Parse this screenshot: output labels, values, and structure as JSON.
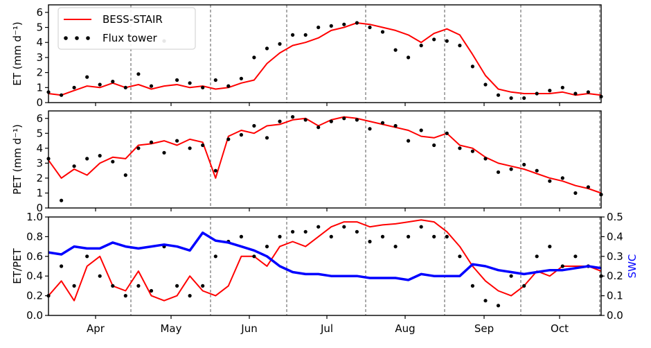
{
  "chart_data": [
    {
      "type": "line",
      "ylabel": "ET (mm d⁻¹)",
      "ylim": [
        0,
        6.5
      ],
      "yticks": [
        0,
        1,
        2,
        3,
        4,
        5,
        6
      ],
      "legend": {
        "placement": "top-left",
        "entries": [
          "BESS-STAIR",
          "Flux tower"
        ]
      },
      "series": [
        {
          "name": "BESS-STAIR",
          "style": "line",
          "color": "#ff0000",
          "x": [
            0,
            5,
            10,
            15,
            20,
            25,
            30,
            35,
            40,
            45,
            50,
            55,
            60,
            65,
            70,
            75,
            80,
            85,
            90,
            95,
            100,
            105,
            110,
            115,
            120,
            125,
            130,
            135,
            140,
            145,
            150,
            155,
            160,
            165,
            170,
            175,
            180,
            185,
            190,
            195,
            200,
            205,
            210,
            215
          ],
          "y": [
            0.6,
            0.5,
            0.8,
            1.1,
            1.0,
            1.3,
            1.0,
            1.2,
            0.9,
            1.1,
            1.2,
            1.0,
            1.1,
            0.9,
            1.0,
            1.3,
            1.5,
            2.6,
            3.3,
            3.8,
            4.0,
            4.3,
            4.8,
            5.0,
            5.3,
            5.2,
            5.0,
            4.8,
            4.5,
            4.0,
            4.6,
            4.9,
            4.5,
            3.2,
            1.8,
            0.9,
            0.7,
            0.6,
            0.6,
            0.6,
            0.7,
            0.5,
            0.6,
            0.5
          ]
        },
        {
          "name": "Flux tower",
          "style": "points",
          "color": "#000000",
          "x": [
            0,
            5,
            10,
            15,
            20,
            25,
            30,
            35,
            40,
            45,
            50,
            55,
            60,
            65,
            70,
            75,
            80,
            85,
            90,
            95,
            100,
            105,
            110,
            115,
            120,
            125,
            130,
            135,
            140,
            145,
            150,
            155,
            160,
            165,
            170,
            175,
            180,
            185,
            190,
            195,
            200,
            205,
            210,
            215
          ],
          "y": [
            0.7,
            0.5,
            1.0,
            1.7,
            1.2,
            1.4,
            1.0,
            1.9,
            1.1,
            4.1,
            1.5,
            1.3,
            1.0,
            1.5,
            1.1,
            1.6,
            3.0,
            3.6,
            3.9,
            4.5,
            4.5,
            5.0,
            5.1,
            5.2,
            5.3,
            5.0,
            4.7,
            3.5,
            3.0,
            3.8,
            4.2,
            4.1,
            3.8,
            2.4,
            1.2,
            0.5,
            0.3,
            0.3,
            0.6,
            0.8,
            1.0,
            0.6,
            0.7,
            0.4
          ]
        }
      ]
    },
    {
      "type": "line",
      "ylabel": "PET (mm d⁻¹)",
      "ylim": [
        0,
        6.5
      ],
      "yticks": [
        0,
        1,
        2,
        3,
        4,
        5,
        6
      ],
      "series": [
        {
          "name": "BESS-STAIR",
          "style": "line",
          "color": "#ff0000",
          "x": [
            0,
            5,
            10,
            15,
            20,
            25,
            30,
            35,
            40,
            45,
            50,
            55,
            60,
            65,
            70,
            75,
            80,
            85,
            90,
            95,
            100,
            105,
            110,
            115,
            120,
            125,
            130,
            135,
            140,
            145,
            150,
            155,
            160,
            165,
            170,
            175,
            180,
            185,
            190,
            195,
            200,
            205,
            210,
            215
          ],
          "y": [
            3.2,
            2.0,
            2.6,
            2.2,
            3.0,
            3.4,
            3.3,
            4.2,
            4.3,
            4.5,
            4.2,
            4.6,
            4.4,
            2.0,
            4.8,
            5.2,
            5.0,
            5.5,
            5.6,
            5.9,
            6.0,
            5.5,
            5.9,
            6.1,
            6.0,
            5.8,
            5.6,
            5.4,
            5.2,
            4.8,
            4.7,
            5.0,
            4.2,
            4.0,
            3.4,
            3.0,
            2.8,
            2.6,
            2.3,
            2.0,
            1.8,
            1.5,
            1.3,
            1.0
          ]
        },
        {
          "name": "Flux tower",
          "style": "points",
          "color": "#000000",
          "x": [
            0,
            5,
            10,
            15,
            20,
            25,
            30,
            35,
            40,
            45,
            50,
            55,
            60,
            65,
            70,
            75,
            80,
            85,
            90,
            95,
            100,
            105,
            110,
            115,
            120,
            125,
            130,
            135,
            140,
            145,
            150,
            155,
            160,
            165,
            170,
            175,
            180,
            185,
            190,
            195,
            200,
            205,
            210,
            215
          ],
          "y": [
            3.3,
            0.5,
            2.8,
            3.3,
            3.5,
            3.1,
            2.2,
            4.0,
            4.4,
            3.7,
            4.5,
            4.0,
            4.2,
            2.5,
            4.6,
            4.9,
            5.5,
            4.7,
            5.8,
            6.1,
            5.9,
            5.4,
            5.8,
            6.0,
            5.9,
            5.3,
            5.7,
            5.5,
            4.5,
            5.2,
            4.2,
            5.0,
            4.0,
            3.8,
            3.3,
            2.4,
            2.6,
            2.9,
            2.5,
            1.8,
            2.0,
            1.0,
            1.4,
            0.9
          ]
        }
      ]
    },
    {
      "type": "line",
      "ylabel": "ET/PET",
      "ylim": [
        0,
        1
      ],
      "yticks": [
        0.0,
        0.2,
        0.4,
        0.6,
        0.8,
        1.0
      ],
      "y2label": "SWC",
      "y2lim": [
        0,
        0.5
      ],
      "y2ticks": [
        0.0,
        0.1,
        0.2,
        0.3,
        0.4,
        0.5
      ],
      "xticklabels": [
        "Apr",
        "May",
        "Jun",
        "Jul",
        "Aug",
        "Sep",
        "Oct"
      ],
      "grid": "dashed vertical lines at month boundaries",
      "series": [
        {
          "name": "BESS-STAIR",
          "style": "line",
          "color": "#ff0000",
          "x": [
            0,
            5,
            10,
            15,
            20,
            25,
            30,
            35,
            40,
            45,
            50,
            55,
            60,
            65,
            70,
            75,
            80,
            85,
            90,
            95,
            100,
            105,
            110,
            115,
            120,
            125,
            130,
            135,
            140,
            145,
            150,
            155,
            160,
            165,
            170,
            175,
            180,
            185,
            190,
            195,
            200,
            205,
            210,
            215
          ],
          "y": [
            0.2,
            0.35,
            0.15,
            0.5,
            0.6,
            0.3,
            0.25,
            0.45,
            0.2,
            0.15,
            0.2,
            0.4,
            0.25,
            0.2,
            0.3,
            0.6,
            0.6,
            0.5,
            0.7,
            0.75,
            0.7,
            0.8,
            0.9,
            0.95,
            0.95,
            0.9,
            0.92,
            0.93,
            0.95,
            0.97,
            0.95,
            0.85,
            0.7,
            0.5,
            0.35,
            0.25,
            0.2,
            0.3,
            0.45,
            0.4,
            0.5,
            0.5,
            0.5,
            0.45
          ]
        },
        {
          "name": "Flux tower",
          "style": "points",
          "color": "#000000",
          "x": [
            0,
            5,
            10,
            15,
            20,
            25,
            30,
            35,
            40,
            45,
            50,
            55,
            60,
            65,
            70,
            75,
            80,
            85,
            90,
            95,
            100,
            105,
            110,
            115,
            120,
            125,
            130,
            135,
            140,
            145,
            150,
            155,
            160,
            165,
            170,
            175,
            180,
            185,
            190,
            195,
            200,
            205,
            210,
            215
          ],
          "y": [
            0.2,
            0.5,
            0.3,
            0.6,
            0.4,
            0.3,
            0.2,
            0.3,
            0.25,
            0.7,
            0.3,
            0.2,
            0.3,
            0.6,
            0.75,
            0.8,
            0.6,
            0.7,
            0.8,
            0.85,
            0.85,
            0.9,
            0.8,
            0.9,
            0.85,
            0.75,
            0.8,
            0.7,
            0.8,
            0.9,
            0.8,
            0.8,
            0.6,
            0.3,
            0.15,
            0.1,
            0.4,
            0.3,
            0.6,
            0.7,
            0.5,
            0.6,
            0.5,
            0.4
          ]
        },
        {
          "name": "SWC",
          "style": "line",
          "axis": "right",
          "color": "#0000ff",
          "x": [
            0,
            5,
            10,
            15,
            20,
            25,
            30,
            35,
            40,
            45,
            50,
            55,
            60,
            65,
            70,
            75,
            80,
            85,
            90,
            95,
            100,
            105,
            110,
            115,
            120,
            125,
            130,
            135,
            140,
            145,
            150,
            155,
            160,
            165,
            170,
            175,
            180,
            185,
            190,
            195,
            200,
            205,
            210,
            215
          ],
          "y": [
            0.32,
            0.31,
            0.35,
            0.34,
            0.34,
            0.37,
            0.35,
            0.34,
            0.35,
            0.36,
            0.35,
            0.33,
            0.42,
            0.38,
            0.37,
            0.35,
            0.33,
            0.3,
            0.25,
            0.22,
            0.21,
            0.21,
            0.2,
            0.2,
            0.2,
            0.19,
            0.19,
            0.19,
            0.18,
            0.21,
            0.2,
            0.2,
            0.2,
            0.26,
            0.25,
            0.23,
            0.22,
            0.21,
            0.22,
            0.23,
            0.23,
            0.24,
            0.25,
            0.24
          ]
        }
      ]
    }
  ]
}
